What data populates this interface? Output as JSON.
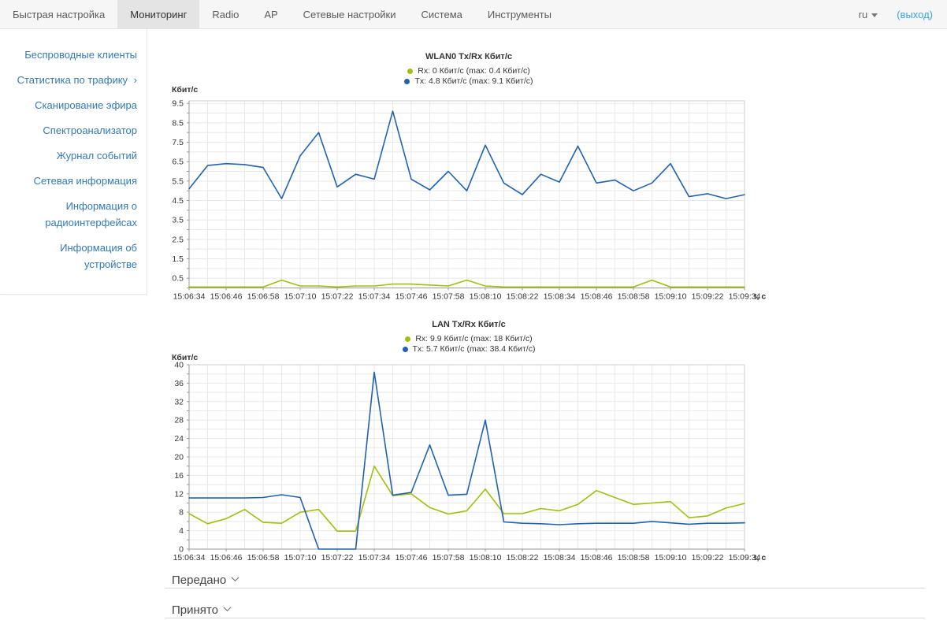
{
  "nav": {
    "tabs": [
      {
        "label": "Быстрая настройка",
        "active": false
      },
      {
        "label": "Мониторинг",
        "active": true
      },
      {
        "label": "Radio",
        "active": false
      },
      {
        "label": "AP",
        "active": false
      },
      {
        "label": "Сетевые настройки",
        "active": false
      },
      {
        "label": "Система",
        "active": false
      },
      {
        "label": "Инструменты",
        "active": false
      }
    ],
    "language": "ru",
    "logout_label": "(выход)"
  },
  "sidebar": {
    "items": [
      {
        "label": "Беспроводные клиенты",
        "has_submenu": false
      },
      {
        "label": "Статистика по трафику",
        "has_submenu": true,
        "submenu_arrow": "›"
      },
      {
        "label": "Сканирование эфира",
        "has_submenu": false
      },
      {
        "label": "Спектроанализатор",
        "has_submenu": false
      },
      {
        "label": "Журнал событий",
        "has_submenu": false
      },
      {
        "label": "Сетевая информация",
        "has_submenu": false
      },
      {
        "label": "Информация о радиоинтерфейсах",
        "has_submenu": false
      },
      {
        "label": "Информация об устройстве",
        "has_submenu": false
      }
    ]
  },
  "chart_data": [
    {
      "type": "line",
      "title": "WLAN0 Tx/Rx Кбит/с",
      "ylabel": "Кбит/с",
      "xlabel": "t, с",
      "ylim": [
        0,
        9.63
      ],
      "y_ticks": [
        0.5,
        1.5,
        2.5,
        3.5,
        4.5,
        5.5,
        6.5,
        7.5,
        8.5,
        9.5
      ],
      "grid": true,
      "legend_position": "top-center",
      "x": [
        "15:06:34",
        "15:06:40",
        "15:06:46",
        "15:06:52",
        "15:06:58",
        "15:07:04",
        "15:07:10",
        "15:07:16",
        "15:07:22",
        "15:07:28",
        "15:07:34",
        "15:07:40",
        "15:07:46",
        "15:07:52",
        "15:07:58",
        "15:08:04",
        "15:08:10",
        "15:08:16",
        "15:08:22",
        "15:08:28",
        "15:08:34",
        "15:08:40",
        "15:08:46",
        "15:08:52",
        "15:08:58",
        "15:09:04",
        "15:09:10",
        "15:09:16",
        "15:09:22",
        "15:09:28",
        "15:09:34"
      ],
      "x_tick_labels": [
        "15:06:34",
        "15:06:46",
        "15:06:58",
        "15:07:10",
        "15:07:22",
        "15:07:34",
        "15:07:46",
        "15:07:58",
        "15:08:10",
        "15:08:22",
        "15:08:34",
        "15:08:46",
        "15:08:58",
        "15:09:10",
        "15:09:22",
        "15:09:34"
      ],
      "series": [
        {
          "name": "Rx",
          "legend": "Rx: 0 Кбит/с (max: 0.4 Кбит/с)",
          "color": "#a5bd0d",
          "values": [
            0.05,
            0.05,
            0.05,
            0.05,
            0.05,
            0.4,
            0.1,
            0.1,
            0.05,
            0.1,
            0.1,
            0.2,
            0.2,
            0.15,
            0.1,
            0.4,
            0.1,
            0.05,
            0.05,
            0.05,
            0.05,
            0.05,
            0.05,
            0.05,
            0.05,
            0.4,
            0.05,
            0.05,
            0.05,
            0.05,
            0.05
          ]
        },
        {
          "name": "Tx",
          "legend": "Tx: 4.8 Кбит/с (max: 9.1 Кбит/с)",
          "color": "#2162b0",
          "values": [
            5.1,
            6.3,
            6.4,
            6.35,
            6.2,
            4.6,
            6.8,
            8.0,
            5.2,
            5.85,
            5.6,
            9.1,
            5.6,
            5.05,
            6.0,
            5.0,
            7.35,
            5.4,
            4.8,
            5.85,
            5.45,
            7.3,
            5.4,
            5.55,
            5.0,
            5.4,
            6.4,
            4.7,
            4.85,
            4.6,
            4.8
          ]
        }
      ]
    },
    {
      "type": "line",
      "title": "LAN Tx/Rx Кбит/с",
      "ylabel": "Кбит/с",
      "xlabel": "t, с",
      "ylim": [
        0,
        40
      ],
      "y_ticks": [
        0,
        4,
        8,
        12,
        16,
        20,
        24,
        28,
        32,
        36,
        40
      ],
      "grid": true,
      "legend_position": "top-center",
      "x": [
        "15:06:34",
        "15:06:40",
        "15:06:46",
        "15:06:52",
        "15:06:58",
        "15:07:04",
        "15:07:10",
        "15:07:16",
        "15:07:22",
        "15:07:28",
        "15:07:34",
        "15:07:40",
        "15:07:46",
        "15:07:52",
        "15:07:58",
        "15:08:04",
        "15:08:10",
        "15:08:16",
        "15:08:22",
        "15:08:28",
        "15:08:34",
        "15:08:40",
        "15:08:46",
        "15:08:52",
        "15:08:58",
        "15:09:04",
        "15:09:10",
        "15:09:16",
        "15:09:22",
        "15:09:28",
        "15:09:34"
      ],
      "x_tick_labels": [
        "15:06:34",
        "15:06:46",
        "15:06:58",
        "15:07:10",
        "15:07:22",
        "15:07:34",
        "15:07:46",
        "15:07:58",
        "15:08:10",
        "15:08:22",
        "15:08:34",
        "15:08:46",
        "15:08:58",
        "15:09:10",
        "15:09:22",
        "15:09:34"
      ],
      "series": [
        {
          "name": "Rx",
          "legend": "Rx: 9.9 Кбит/с (max: 18 Кбит/с)",
          "color": "#a5bd0d",
          "values": [
            7.7,
            5.5,
            6.6,
            8.6,
            5.8,
            5.6,
            8.0,
            8.6,
            3.9,
            3.9,
            18,
            11.6,
            12.0,
            9.0,
            7.6,
            8.3,
            13,
            7.7,
            7.7,
            8.8,
            8.3,
            9.7,
            12.7,
            11.2,
            9.7,
            10.0,
            10.3,
            6.8,
            7.2,
            8.9,
            9.9
          ]
        },
        {
          "name": "Tx",
          "legend": "Tx: 5.7 Кбит/с (max: 38.4 Кбит/с)",
          "color": "#2162b0",
          "values": [
            11.1,
            11.1,
            11.1,
            11.1,
            11.2,
            11.8,
            11.2,
            0,
            0,
            0,
            38.4,
            11.7,
            12.3,
            22.6,
            11.7,
            11.9,
            28,
            5.9,
            5.6,
            5.5,
            5.3,
            5.5,
            5.6,
            5.6,
            5.6,
            6.0,
            5.7,
            5.4,
            5.6,
            5.6,
            5.7
          ]
        }
      ]
    }
  ],
  "sections": [
    {
      "label": "Передано"
    },
    {
      "label": "Принято"
    }
  ]
}
